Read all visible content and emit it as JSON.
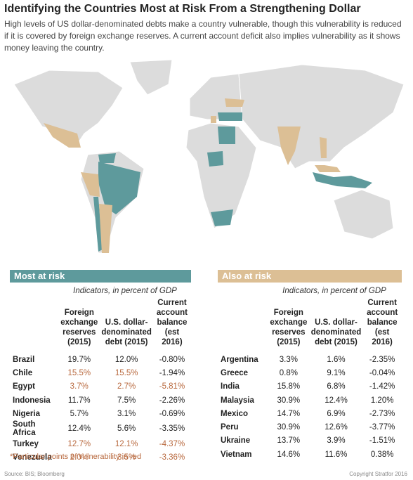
{
  "header": {
    "title": "Identifying the Countries Most at Risk From a Strengthening Dollar",
    "subtitle": "High levels of US dollar-denominated debts make a country vulnerable, though this vulnerability is reduced if it is covered by foreign exchange reserves. A current account deficit also implies vulnerability as it shows money leaving the country."
  },
  "highlight_color": "#b8683d",
  "tables": [
    {
      "title": "Most at risk",
      "color": "#5e9a9c",
      "caption": "Indicators, in percent of GDP",
      "columns": [
        "Foreign exchange reserves (2015)",
        "U.S. dollar-denominated debt (2015)",
        "Current account balance (est 2016)"
      ],
      "rows": [
        [
          "Brazil",
          "19.7%",
          "12.0%",
          "-0.80%"
        ],
        [
          "Chile",
          "15.5%",
          "15.5%",
          "-1.94%"
        ],
        [
          "Egypt",
          "3.7%",
          "2.7%",
          "-5.81%"
        ],
        [
          "Indonesia",
          "11.7%",
          "7.5%",
          "-2.26%"
        ],
        [
          "Nigeria",
          "5.7%",
          "3.1%",
          "-0.69%"
        ],
        [
          "South Africa",
          "12.4%",
          "5.6%",
          "-3.35%"
        ],
        [
          "Turkey",
          "12.7%",
          "12.1%",
          "-4.37%"
        ],
        [
          "Venezuela",
          "2.0%",
          "3.5%",
          "-3.36%"
        ]
      ],
      "highlighted": [
        [
          1,
          1
        ],
        [
          1,
          2
        ],
        [
          2,
          1
        ],
        [
          2,
          2
        ],
        [
          2,
          3
        ],
        [
          6,
          1
        ],
        [
          6,
          2
        ],
        [
          6,
          3
        ],
        [
          7,
          1
        ],
        [
          7,
          2
        ],
        [
          7,
          3
        ]
      ]
    },
    {
      "title": "Also at risk",
      "color": "#dcbf95",
      "caption": "Indicators, in percent of GDP",
      "columns": [
        "Foreign exchange reserves (2015)",
        "U.S. dollar-denominated debt (2015)",
        "Current account balance (est 2016)"
      ],
      "rows": [
        [
          "Argentina",
          "3.3%",
          "1.6%",
          "-2.35%"
        ],
        [
          "Greece",
          "0.8%",
          "9.1%",
          "-0.04%"
        ],
        [
          "India",
          "15.8%",
          "6.8%",
          "-1.42%"
        ],
        [
          "Malaysia",
          "30.9%",
          "12.4%",
          "1.20%"
        ],
        [
          "Mexico",
          "14.7%",
          "6.9%",
          "-2.73%"
        ],
        [
          "Peru",
          "30.9%",
          "12.6%",
          "-3.77%"
        ],
        [
          "Ukraine",
          "13.7%",
          "3.9%",
          "-1.51%"
        ],
        [
          "Vietnam",
          "14.6%",
          "11.6%",
          "0.38%"
        ]
      ],
      "highlighted": []
    }
  ],
  "footnote": "*Particular points of vulnerability in red",
  "source": "Source: BIS; Bloomberg",
  "copyright": "Copyright Stratfor 2016"
}
